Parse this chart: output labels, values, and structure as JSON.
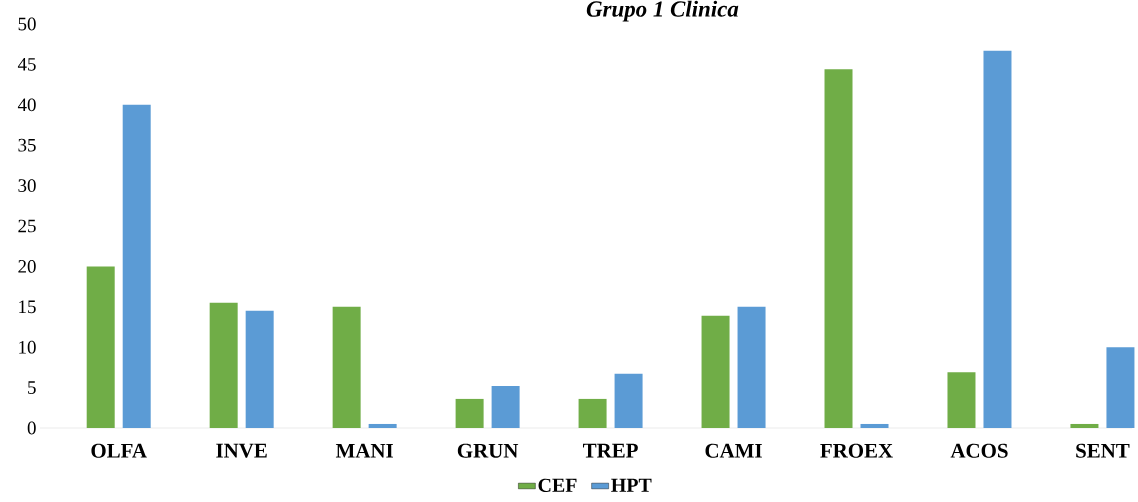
{
  "chart_data": {
    "type": "bar",
    "title": "Grupo 1 Clinica",
    "categories": [
      "OLFA",
      "INVE",
      "MANI",
      "GRUN",
      "TREP",
      "CAMI",
      "FROEX",
      "ACOS",
      "SENT"
    ],
    "series": [
      {
        "name": "CEF",
        "color": "#70ad47",
        "values": [
          20,
          15.5,
          15,
          3.6,
          3.6,
          13.9,
          44.4,
          6.9,
          0.5
        ]
      },
      {
        "name": "HPT",
        "color": "#5b9bd5",
        "values": [
          40,
          14.5,
          0.5,
          5.2,
          6.7,
          15,
          0.5,
          46.7,
          10
        ]
      }
    ],
    "ylim": [
      0,
      50
    ],
    "yticks": [
      0,
      5,
      10,
      15,
      20,
      25,
      30,
      35,
      40,
      45,
      50
    ],
    "legend": "bottom"
  }
}
